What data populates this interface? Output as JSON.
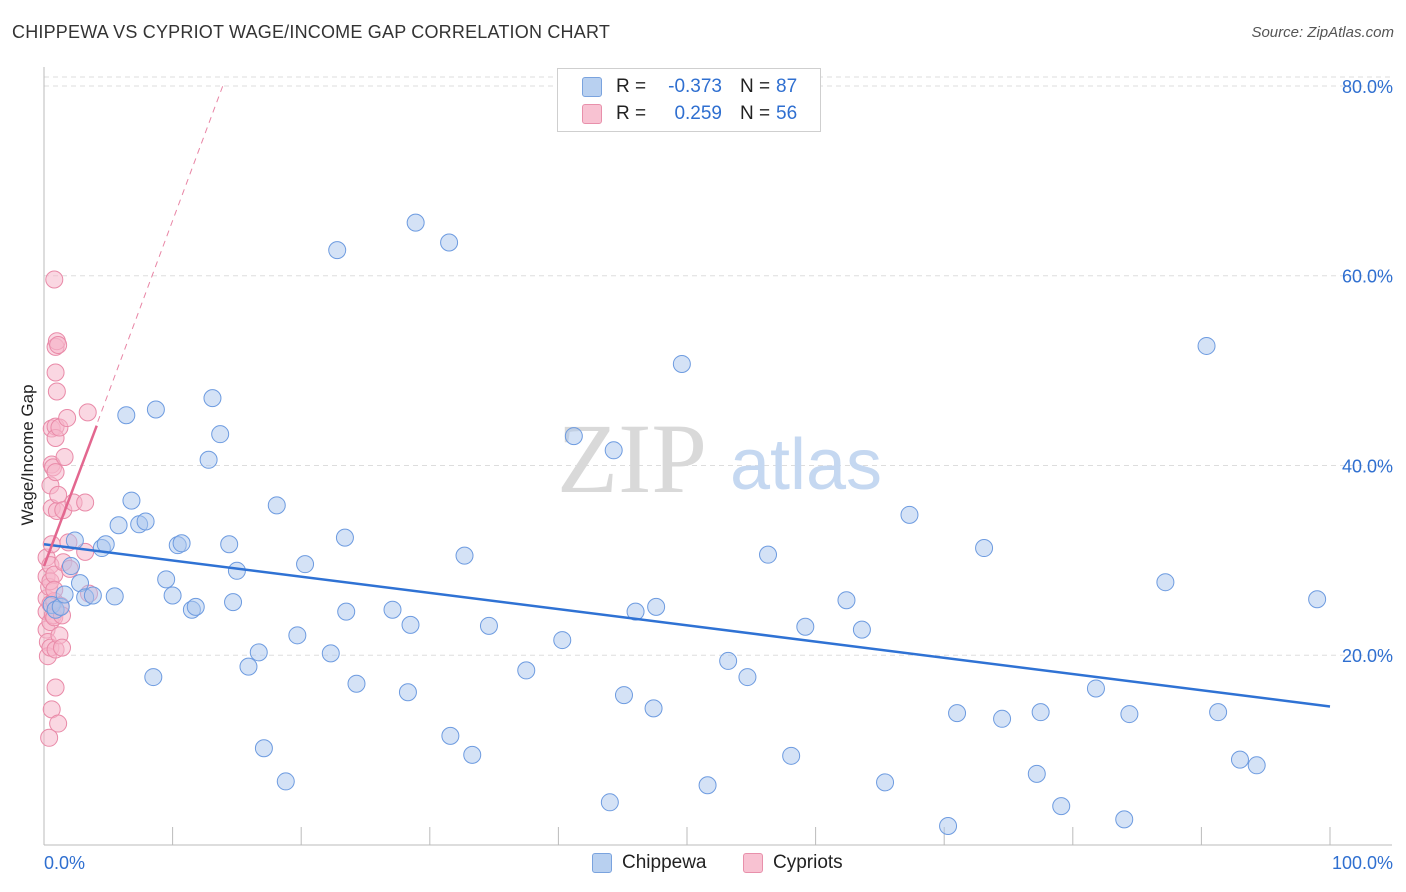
{
  "header": {
    "title": "CHIPPEWA VS CYPRIOT WAGE/INCOME GAP CORRELATION CHART",
    "source": "Source: ZipAtlas.com"
  },
  "watermark": {
    "zip": "ZIP",
    "atlas": "atlas"
  },
  "legend": {
    "r_label": "R =",
    "n_label": "N =",
    "rows": [
      {
        "name": "Chippewa",
        "r": "-0.373",
        "n": "87",
        "fill": "#b8d0f0",
        "stroke": "#7aa3de"
      },
      {
        "name": "Cypriots",
        "r": "0.259",
        "n": "56",
        "fill": "#f8c2d2",
        "stroke": "#e890ab"
      }
    ]
  },
  "colors": {
    "blue_point_fill": "#a9c6ee",
    "blue_point_stroke": "#6d9be0",
    "blue_line": "#2f72d4",
    "pink_point_fill": "#f6b7ca",
    "pink_point_stroke": "#e98aa8",
    "pink_line": "#e3678f",
    "axis_text": "#2f6fd0",
    "grid": "#dddddd"
  },
  "chart_data": {
    "type": "scatter",
    "title": "CHIPPEWA VS CYPRIOT WAGE/INCOME GAP CORRELATION CHART",
    "xlabel": "",
    "ylabel": "Wage/Income Gap",
    "xlim": [
      0,
      100
    ],
    "ylim": [
      0,
      82
    ],
    "x_tick_labels": [
      "0.0%",
      "100.0%"
    ],
    "y_ticks": [
      20,
      40,
      60,
      80
    ],
    "y_tick_labels": [
      "20.0%",
      "40.0%",
      "60.0%",
      "80.0%"
    ],
    "grid": true,
    "legend_position": "top-center",
    "series": [
      {
        "name": "Chippewa",
        "r": -0.373,
        "n": 87,
        "trend": {
          "x": [
            0,
            100
          ],
          "y": [
            31.7,
            14.6
          ],
          "style": "solid"
        },
        "points": [
          [
            0.6,
            25.3
          ],
          [
            0.9,
            24.8
          ],
          [
            1.3,
            25.1
          ],
          [
            1.6,
            26.4
          ],
          [
            2.1,
            29.4
          ],
          [
            2.4,
            32.1
          ],
          [
            2.8,
            27.6
          ],
          [
            3.2,
            26.1
          ],
          [
            3.8,
            26.3
          ],
          [
            4.5,
            31.3
          ],
          [
            4.8,
            31.7
          ],
          [
            5.5,
            26.2
          ],
          [
            5.8,
            33.7
          ],
          [
            6.4,
            45.3
          ],
          [
            6.8,
            36.3
          ],
          [
            7.4,
            33.8
          ],
          [
            7.9,
            34.1
          ],
          [
            8.5,
            17.7
          ],
          [
            8.7,
            45.9
          ],
          [
            9.5,
            28.0
          ],
          [
            10.0,
            26.3
          ],
          [
            10.4,
            31.6
          ],
          [
            10.7,
            31.8
          ],
          [
            11.5,
            24.8
          ],
          [
            11.8,
            25.1
          ],
          [
            12.8,
            40.6
          ],
          [
            13.1,
            47.1
          ],
          [
            13.7,
            43.3
          ],
          [
            14.4,
            31.7
          ],
          [
            14.7,
            25.6
          ],
          [
            15.0,
            28.9
          ],
          [
            15.9,
            18.8
          ],
          [
            16.7,
            20.3
          ],
          [
            17.1,
            10.2
          ],
          [
            18.1,
            35.8
          ],
          [
            18.8,
            6.7
          ],
          [
            19.7,
            22.1
          ],
          [
            20.3,
            29.6
          ],
          [
            22.3,
            20.2
          ],
          [
            22.8,
            62.7
          ],
          [
            23.4,
            32.4
          ],
          [
            23.5,
            24.6
          ],
          [
            24.3,
            17.0
          ],
          [
            27.1,
            24.8
          ],
          [
            28.3,
            16.1
          ],
          [
            28.5,
            23.2
          ],
          [
            28.9,
            65.6
          ],
          [
            31.5,
            63.5
          ],
          [
            31.6,
            11.5
          ],
          [
            32.7,
            30.5
          ],
          [
            33.3,
            9.5
          ],
          [
            34.6,
            23.1
          ],
          [
            37.5,
            18.4
          ],
          [
            40.3,
            21.6
          ],
          [
            41.2,
            43.1
          ],
          [
            44.0,
            4.5
          ],
          [
            44.3,
            41.6
          ],
          [
            45.1,
            15.8
          ],
          [
            46.0,
            24.6
          ],
          [
            47.4,
            14.4
          ],
          [
            47.6,
            25.1
          ],
          [
            49.6,
            50.7
          ],
          [
            51.6,
            6.3
          ],
          [
            53.2,
            19.4
          ],
          [
            54.7,
            17.7
          ],
          [
            56.3,
            30.6
          ],
          [
            58.1,
            9.4
          ],
          [
            59.2,
            23.0
          ],
          [
            62.4,
            25.8
          ],
          [
            63.6,
            22.7
          ],
          [
            65.4,
            6.6
          ],
          [
            67.3,
            34.8
          ],
          [
            70.3,
            2.0
          ],
          [
            71.0,
            13.9
          ],
          [
            73.1,
            31.3
          ],
          [
            74.5,
            13.3
          ],
          [
            77.2,
            7.5
          ],
          [
            77.5,
            14.0
          ],
          [
            79.1,
            4.1
          ],
          [
            81.8,
            16.5
          ],
          [
            84.0,
            2.7
          ],
          [
            84.4,
            13.8
          ],
          [
            87.2,
            27.7
          ],
          [
            90.4,
            52.6
          ],
          [
            91.3,
            14.0
          ],
          [
            93.0,
            9.0
          ],
          [
            94.3,
            8.4
          ],
          [
            99.0,
            25.9
          ]
        ]
      },
      {
        "name": "Cypriots",
        "r": 0.259,
        "n": 56,
        "trend": {
          "x": [
            0,
            4.1
          ],
          "y": [
            29.4,
            44.2
          ],
          "style": "solid",
          "extended_to": [
            13.9,
            80.0
          ],
          "extended_style": "dashed"
        },
        "points": [
          [
            0.2,
            30.3
          ],
          [
            0.2,
            28.3
          ],
          [
            0.2,
            26.0
          ],
          [
            0.2,
            24.6
          ],
          [
            0.2,
            22.7
          ],
          [
            0.3,
            21.4
          ],
          [
            0.3,
            19.9
          ],
          [
            0.4,
            27.2
          ],
          [
            0.4,
            11.3
          ],
          [
            0.5,
            29.5
          ],
          [
            0.5,
            27.8
          ],
          [
            0.5,
            25.4
          ],
          [
            0.5,
            23.5
          ],
          [
            0.5,
            20.8
          ],
          [
            0.5,
            37.9
          ],
          [
            0.6,
            35.5
          ],
          [
            0.6,
            31.7
          ],
          [
            0.6,
            14.3
          ],
          [
            0.6,
            40.1
          ],
          [
            0.6,
            43.9
          ],
          [
            0.7,
            39.8
          ],
          [
            0.7,
            24.2
          ],
          [
            0.8,
            25.7
          ],
          [
            0.8,
            28.5
          ],
          [
            0.8,
            26.9
          ],
          [
            0.8,
            24.0
          ],
          [
            0.8,
            59.6
          ],
          [
            0.9,
            52.5
          ],
          [
            0.9,
            49.8
          ],
          [
            0.9,
            44.1
          ],
          [
            0.9,
            42.9
          ],
          [
            0.9,
            39.3
          ],
          [
            0.9,
            20.6
          ],
          [
            0.9,
            16.6
          ],
          [
            1.0,
            53.1
          ],
          [
            1.0,
            47.8
          ],
          [
            1.0,
            35.2
          ],
          [
            1.1,
            52.7
          ],
          [
            1.1,
            36.9
          ],
          [
            1.1,
            12.8
          ],
          [
            1.2,
            44.0
          ],
          [
            1.2,
            22.1
          ],
          [
            1.3,
            25.2
          ],
          [
            1.4,
            24.2
          ],
          [
            1.4,
            20.8
          ],
          [
            1.5,
            35.3
          ],
          [
            1.5,
            29.8
          ],
          [
            1.6,
            40.9
          ],
          [
            1.8,
            45.0
          ],
          [
            1.9,
            31.9
          ],
          [
            2.0,
            29.1
          ],
          [
            2.3,
            36.1
          ],
          [
            3.2,
            30.9
          ],
          [
            3.2,
            36.1
          ],
          [
            3.4,
            45.6
          ],
          [
            3.5,
            26.5
          ]
        ]
      }
    ]
  }
}
